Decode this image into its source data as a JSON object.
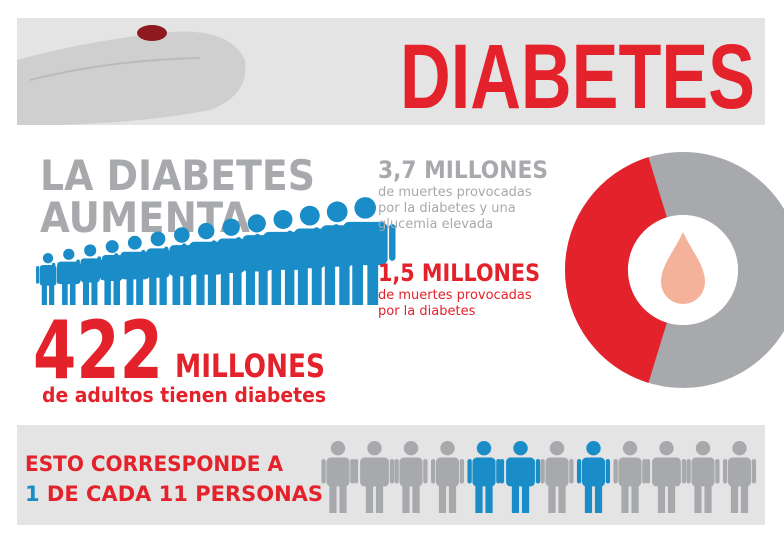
{
  "header": {
    "title": "DIABETES"
  },
  "left": {
    "heading": [
      "LA DIABETES",
      "AUMENTA"
    ],
    "number": "422",
    "unit": "MILLONES",
    "caption": "de adultos tienen diabetes"
  },
  "stats": [
    {
      "value": 3.7,
      "label": "3,7 MILLONES",
      "lines": [
        "de muertes provocadas",
        "por la diabetes y una",
        "glucemia elevada"
      ]
    },
    {
      "value": 1.5,
      "label": "1,5 MILLONES",
      "lines": [
        "de muertes provocadas",
        "por la diabetes"
      ]
    }
  ],
  "footer": {
    "line1": "ESTO CORRESPONDE A",
    "highlight": "1",
    "line2": " DE CADA 11 PERSONAS"
  }
}
